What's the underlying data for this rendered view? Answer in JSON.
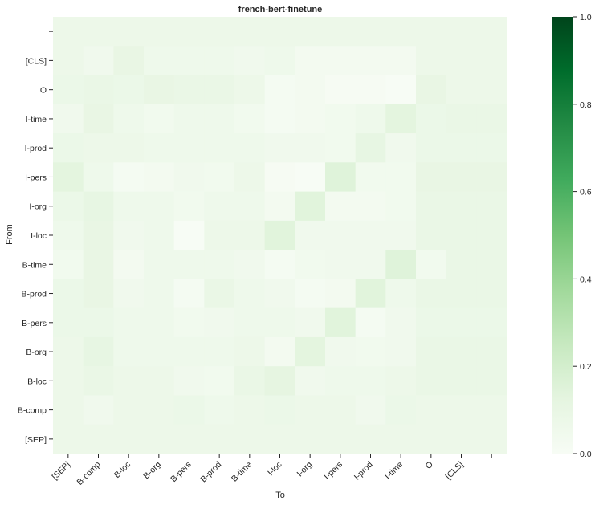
{
  "chart_data": {
    "type": "heatmap",
    "title": "french-bert-finetune",
    "xlabel": "To",
    "ylabel": "From",
    "x_categories": [
      "[SEP]",
      "B-comp",
      "B-loc",
      "B-org",
      "B-pers",
      "B-prod",
      "B-time",
      "I-loc",
      "I-org",
      "I-pers",
      "I-prod",
      "I-time",
      "O",
      "[CLS]",
      ""
    ],
    "y_categories": [
      "",
      "[CLS]",
      "O",
      "I-time",
      "I-prod",
      "I-pers",
      "I-org",
      "I-loc",
      "B-time",
      "B-prod",
      "B-pers",
      "B-org",
      "B-loc",
      "B-comp",
      "[SEP]"
    ],
    "values": [
      [
        0.07,
        0.07,
        0.07,
        0.07,
        0.07,
        0.07,
        0.07,
        0.07,
        0.07,
        0.07,
        0.07,
        0.07,
        0.07,
        0.07,
        0.07
      ],
      [
        0.07,
        0.05,
        0.1,
        0.06,
        0.06,
        0.06,
        0.05,
        0.06,
        0.03,
        0.03,
        0.03,
        0.03,
        0.07,
        0.07,
        0.07
      ],
      [
        0.08,
        0.09,
        0.08,
        0.1,
        0.09,
        0.09,
        0.07,
        0.02,
        0.03,
        0.01,
        0.01,
        0.0,
        0.1,
        0.07,
        0.07
      ],
      [
        0.05,
        0.1,
        0.06,
        0.04,
        0.06,
        0.06,
        0.04,
        0.02,
        0.03,
        0.04,
        0.06,
        0.13,
        0.08,
        0.09,
        0.09
      ],
      [
        0.08,
        0.07,
        0.07,
        0.06,
        0.06,
        0.06,
        0.06,
        0.05,
        0.05,
        0.04,
        0.11,
        0.05,
        0.08,
        0.08,
        0.08
      ],
      [
        0.13,
        0.06,
        0.02,
        0.03,
        0.05,
        0.04,
        0.07,
        0.01,
        0.0,
        0.15,
        0.04,
        0.04,
        0.1,
        0.1,
        0.1
      ],
      [
        0.08,
        0.11,
        0.06,
        0.06,
        0.04,
        0.06,
        0.06,
        0.03,
        0.14,
        0.03,
        0.03,
        0.04,
        0.09,
        0.09,
        0.09
      ],
      [
        0.06,
        0.1,
        0.05,
        0.06,
        0.0,
        0.07,
        0.07,
        0.14,
        0.05,
        0.05,
        0.05,
        0.05,
        0.09,
        0.09,
        0.09
      ],
      [
        0.04,
        0.1,
        0.03,
        0.06,
        0.06,
        0.06,
        0.05,
        0.02,
        0.04,
        0.05,
        0.05,
        0.15,
        0.04,
        0.09,
        0.09
      ],
      [
        0.08,
        0.1,
        0.05,
        0.06,
        0.02,
        0.09,
        0.06,
        0.05,
        0.02,
        0.03,
        0.14,
        0.06,
        0.09,
        0.09,
        0.09
      ],
      [
        0.08,
        0.08,
        0.06,
        0.06,
        0.04,
        0.05,
        0.06,
        0.06,
        0.05,
        0.14,
        0.02,
        0.05,
        0.08,
        0.08,
        0.08
      ],
      [
        0.07,
        0.11,
        0.06,
        0.06,
        0.06,
        0.06,
        0.07,
        0.03,
        0.13,
        0.05,
        0.04,
        0.05,
        0.09,
        0.09,
        0.09
      ],
      [
        0.07,
        0.09,
        0.07,
        0.07,
        0.05,
        0.04,
        0.09,
        0.12,
        0.05,
        0.06,
        0.06,
        0.07,
        0.09,
        0.09,
        0.09
      ],
      [
        0.07,
        0.05,
        0.07,
        0.07,
        0.08,
        0.06,
        0.07,
        0.08,
        0.07,
        0.07,
        0.05,
        0.08,
        0.07,
        0.07,
        0.07
      ],
      [
        0.07,
        0.07,
        0.07,
        0.07,
        0.07,
        0.07,
        0.07,
        0.07,
        0.07,
        0.07,
        0.07,
        0.07,
        0.07,
        0.07,
        0.07
      ]
    ],
    "colorbar": {
      "min": 0.0,
      "max": 1.0,
      "ticks": [
        "0.0",
        "0.2",
        "0.4",
        "0.6",
        "0.8",
        "1.0"
      ],
      "colormap": "Greens"
    },
    "grid": false
  }
}
